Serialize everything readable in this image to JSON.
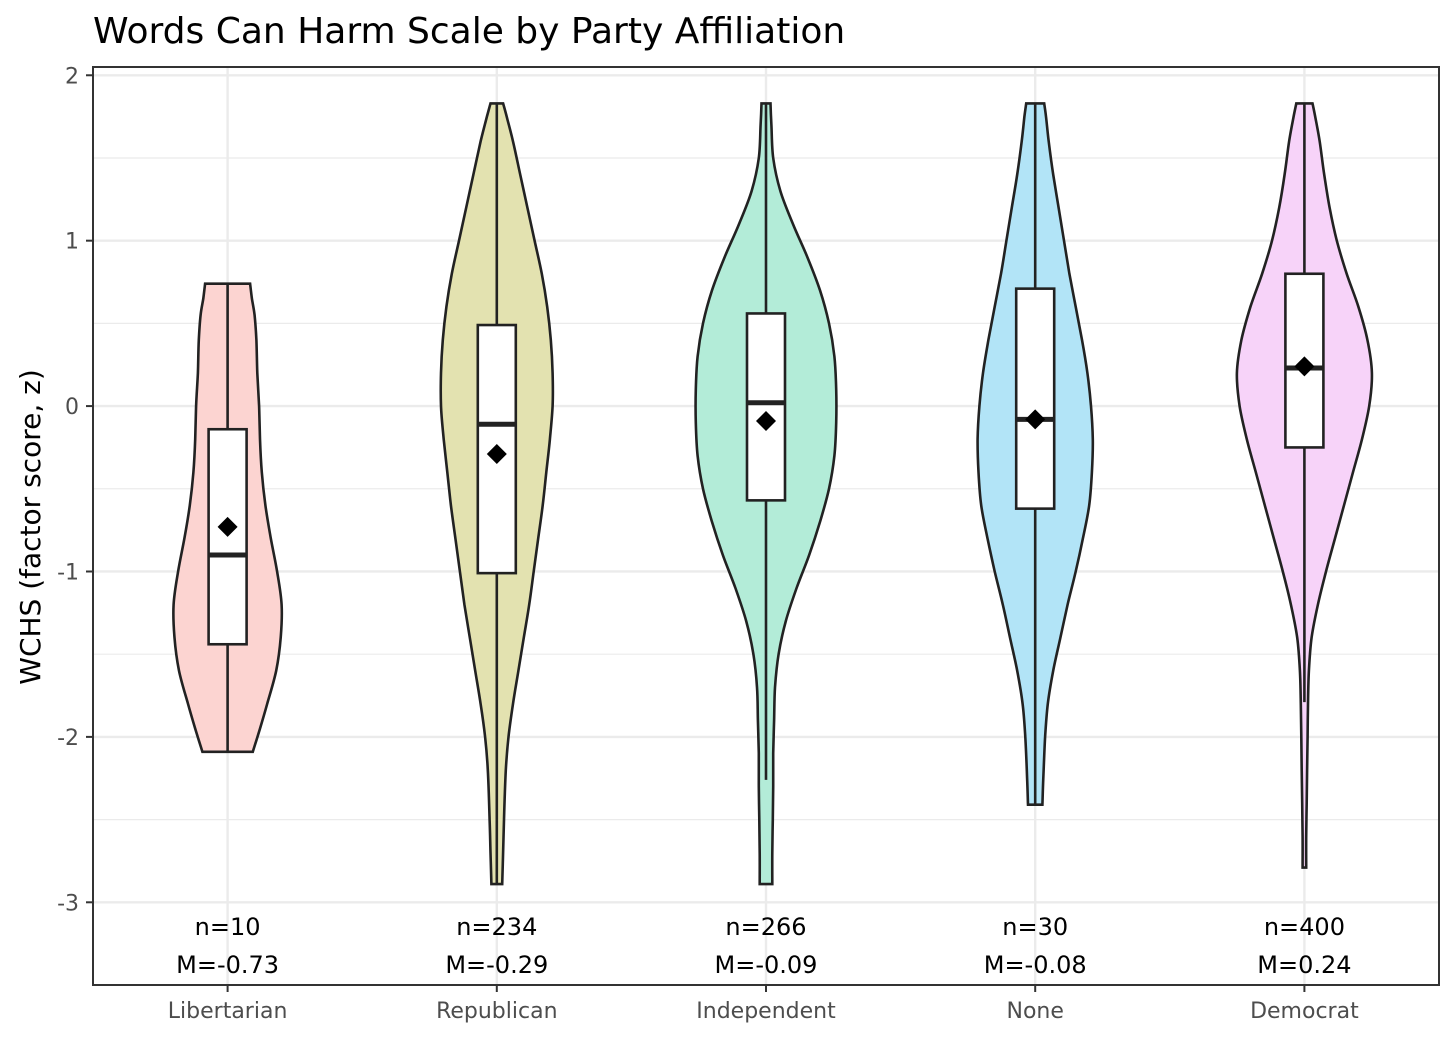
{
  "chart_data": {
    "type": "violin",
    "title": "Words Can Harm Scale by Party Affiliation",
    "xlabel": "",
    "ylabel": "WCHS (factor score, z)",
    "ylim": [
      -3.5,
      2.05
    ],
    "yticks": [
      2,
      1,
      0,
      -1,
      -2,
      -3
    ],
    "ytick_labels": [
      "2",
      "1",
      "0",
      "-1",
      "-2",
      "-3"
    ],
    "grid": true,
    "categories": [
      "Libertarian",
      "Republican",
      "Independent",
      "None",
      "Democrat"
    ],
    "series": [
      {
        "category": "Libertarian",
        "color": "#fcd4d1",
        "min": -2.09,
        "max": 0.74,
        "q1": -1.44,
        "median": -0.9,
        "q3": -0.14,
        "whisker_low": -2.09,
        "whisker_high": 0.74,
        "mean": -0.73,
        "n_label": "n=10",
        "m_label": "M=-0.73",
        "density": [
          [
            -2.09,
            0.28
          ],
          [
            -1.95,
            0.36
          ],
          [
            -1.8,
            0.44
          ],
          [
            -1.6,
            0.54
          ],
          [
            -1.4,
            0.59
          ],
          [
            -1.2,
            0.6
          ],
          [
            -1.0,
            0.55
          ],
          [
            -0.8,
            0.48
          ],
          [
            -0.6,
            0.42
          ],
          [
            -0.4,
            0.38
          ],
          [
            -0.2,
            0.36
          ],
          [
            0.0,
            0.35
          ],
          [
            0.2,
            0.33
          ],
          [
            0.4,
            0.32
          ],
          [
            0.55,
            0.3
          ],
          [
            0.65,
            0.27
          ],
          [
            0.74,
            0.25
          ]
        ]
      },
      {
        "category": "Republican",
        "color": "#e3e2b0",
        "min": -2.89,
        "max": 1.83,
        "q1": -1.01,
        "median": -0.11,
        "q3": 0.49,
        "whisker_low": -2.89,
        "whisker_high": 1.83,
        "mean": -0.29,
        "n_label": "n=234",
        "m_label": "M=-0.29",
        "density": [
          [
            -2.89,
            0.06
          ],
          [
            -2.7,
            0.07
          ],
          [
            -2.5,
            0.08
          ],
          [
            -2.2,
            0.1
          ],
          [
            -2.0,
            0.13
          ],
          [
            -1.8,
            0.18
          ],
          [
            -1.6,
            0.24
          ],
          [
            -1.4,
            0.3
          ],
          [
            -1.2,
            0.36
          ],
          [
            -1.0,
            0.41
          ],
          [
            -0.8,
            0.46
          ],
          [
            -0.6,
            0.51
          ],
          [
            -0.4,
            0.55
          ],
          [
            -0.2,
            0.59
          ],
          [
            0.0,
            0.62
          ],
          [
            0.2,
            0.62
          ],
          [
            0.4,
            0.6
          ],
          [
            0.6,
            0.56
          ],
          [
            0.8,
            0.5
          ],
          [
            1.0,
            0.42
          ],
          [
            1.2,
            0.34
          ],
          [
            1.4,
            0.26
          ],
          [
            1.6,
            0.18
          ],
          [
            1.75,
            0.11
          ],
          [
            1.83,
            0.07
          ]
        ]
      },
      {
        "category": "Independent",
        "color": "#b3ecd8",
        "min": -2.89,
        "max": 1.83,
        "q1": -0.57,
        "median": 0.02,
        "q3": 0.56,
        "whisker_low": -2.26,
        "whisker_high": 1.83,
        "mean": -0.09,
        "n_label": "n=266",
        "m_label": "M=-0.09",
        "density": [
          [
            -2.89,
            0.07
          ],
          [
            -2.7,
            0.07
          ],
          [
            -2.5,
            0.075
          ],
          [
            -2.3,
            0.08
          ],
          [
            -2.1,
            0.08
          ],
          [
            -1.9,
            0.09
          ],
          [
            -1.7,
            0.1
          ],
          [
            -1.5,
            0.14
          ],
          [
            -1.3,
            0.22
          ],
          [
            -1.1,
            0.34
          ],
          [
            -0.9,
            0.48
          ],
          [
            -0.7,
            0.6
          ],
          [
            -0.5,
            0.7
          ],
          [
            -0.3,
            0.76
          ],
          [
            -0.1,
            0.78
          ],
          [
            0.1,
            0.78
          ],
          [
            0.3,
            0.76
          ],
          [
            0.5,
            0.7
          ],
          [
            0.7,
            0.6
          ],
          [
            0.9,
            0.46
          ],
          [
            1.1,
            0.3
          ],
          [
            1.3,
            0.16
          ],
          [
            1.5,
            0.08
          ],
          [
            1.7,
            0.06
          ],
          [
            1.83,
            0.05
          ]
        ]
      },
      {
        "category": "None",
        "color": "#b2e4f7",
        "min": -2.41,
        "max": 1.83,
        "q1": -0.62,
        "median": -0.08,
        "q3": 0.71,
        "whisker_low": -2.41,
        "whisker_high": 1.83,
        "mean": -0.08,
        "n_label": "n=30",
        "m_label": "M=-0.08",
        "density": [
          [
            -2.41,
            0.08
          ],
          [
            -2.25,
            0.09
          ],
          [
            -2.0,
            0.11
          ],
          [
            -1.8,
            0.14
          ],
          [
            -1.6,
            0.2
          ],
          [
            -1.4,
            0.28
          ],
          [
            -1.2,
            0.36
          ],
          [
            -1.0,
            0.45
          ],
          [
            -0.8,
            0.53
          ],
          [
            -0.6,
            0.6
          ],
          [
            -0.4,
            0.63
          ],
          [
            -0.2,
            0.64
          ],
          [
            0.0,
            0.62
          ],
          [
            0.2,
            0.58
          ],
          [
            0.4,
            0.52
          ],
          [
            0.6,
            0.45
          ],
          [
            0.8,
            0.38
          ],
          [
            1.0,
            0.32
          ],
          [
            1.2,
            0.26
          ],
          [
            1.4,
            0.2
          ],
          [
            1.6,
            0.15
          ],
          [
            1.75,
            0.12
          ],
          [
            1.83,
            0.1
          ]
        ]
      },
      {
        "category": "Democrat",
        "color": "#f7d3f9",
        "min": -2.79,
        "max": 1.83,
        "q1": -0.25,
        "median": 0.23,
        "q3": 0.8,
        "whisker_low": -1.79,
        "whisker_high": 1.83,
        "mean": 0.24,
        "n_label": "n=400",
        "m_label": "M=0.24",
        "density": [
          [
            -2.79,
            0.02
          ],
          [
            -2.6,
            0.02
          ],
          [
            -2.4,
            0.025
          ],
          [
            -2.2,
            0.03
          ],
          [
            -2.0,
            0.035
          ],
          [
            -1.8,
            0.04
          ],
          [
            -1.6,
            0.05
          ],
          [
            -1.4,
            0.08
          ],
          [
            -1.2,
            0.15
          ],
          [
            -1.0,
            0.24
          ],
          [
            -0.8,
            0.34
          ],
          [
            -0.6,
            0.44
          ],
          [
            -0.4,
            0.54
          ],
          [
            -0.2,
            0.64
          ],
          [
            0.0,
            0.72
          ],
          [
            0.2,
            0.75
          ],
          [
            0.4,
            0.7
          ],
          [
            0.6,
            0.6
          ],
          [
            0.8,
            0.47
          ],
          [
            1.0,
            0.36
          ],
          [
            1.2,
            0.28
          ],
          [
            1.4,
            0.22
          ],
          [
            1.6,
            0.17
          ],
          [
            1.75,
            0.12
          ],
          [
            1.83,
            0.09
          ]
        ]
      }
    ]
  }
}
